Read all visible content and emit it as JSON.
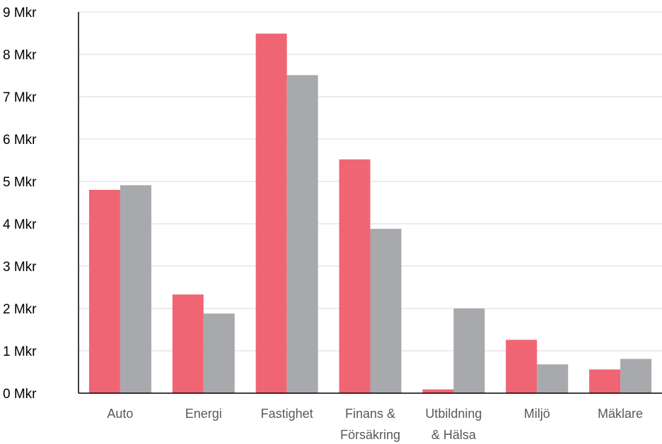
{
  "chart_data": {
    "type": "bar",
    "title": "",
    "xlabel": "",
    "ylabel": "",
    "categories": [
      [
        "Auto"
      ],
      [
        "Energi"
      ],
      [
        "Fastighet"
      ],
      [
        "Finans &",
        "Försäkring"
      ],
      [
        "Utbildning",
        "& Hälsa"
      ],
      [
        "Miljö"
      ],
      [
        "Mäklare"
      ]
    ],
    "series": [
      {
        "color": "#f06574",
        "values": [
          4.8,
          2.33,
          8.49,
          5.52,
          0.09,
          1.26,
          0.56
        ]
      },
      {
        "color": "#a8a9ad",
        "values": [
          4.91,
          1.88,
          7.51,
          3.88,
          2.0,
          0.68,
          0.81
        ]
      }
    ],
    "ylim": [
      0,
      9
    ],
    "yticks": [
      "0 Mkr",
      "1 Mkr",
      "2 Mkr",
      "3 Mkr",
      "4 Mkr",
      "5 Mkr",
      "6 Mkr",
      "7 Mkr",
      "8 Mkr",
      "9 Mkr"
    ],
    "grid": true,
    "legend": "none"
  }
}
